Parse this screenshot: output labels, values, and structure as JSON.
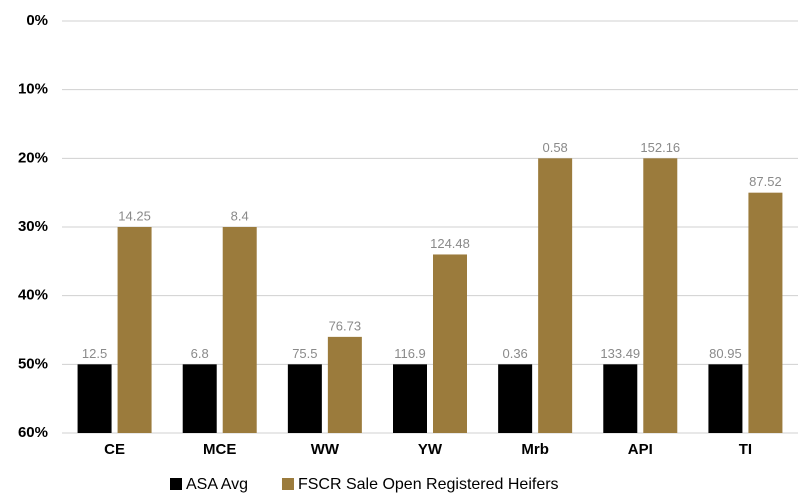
{
  "chart_data": {
    "type": "bar",
    "categories": [
      "CE",
      "MCE",
      "WW",
      "YW",
      "Mrb",
      "API",
      "TI"
    ],
    "series": [
      {
        "name": "ASA Avg",
        "color": "#000000",
        "values": [
          50,
          50,
          50,
          50,
          50,
          50,
          50
        ],
        "point_labels": [
          "12.5",
          "6.8",
          "75.5",
          "116.9",
          "0.36",
          "133.49",
          "80.95"
        ]
      },
      {
        "name": "FSCR Sale Open Registered Heifers",
        "color": "#9b7b3c",
        "values": [
          30,
          30,
          46,
          34,
          20,
          20,
          25
        ],
        "point_labels": [
          "14.25",
          "8.4",
          "76.73",
          "124.48",
          "0.58",
          "152.16",
          "87.52"
        ]
      }
    ],
    "ylim": [
      0,
      60
    ],
    "y_inverted": true,
    "yticks": [
      {
        "value": 0,
        "label": "0%"
      },
      {
        "value": 10,
        "label": "10%"
      },
      {
        "value": 20,
        "label": "20%"
      },
      {
        "value": 30,
        "label": "30%"
      },
      {
        "value": 40,
        "label": "40%"
      },
      {
        "value": 50,
        "label": "50%"
      },
      {
        "value": 60,
        "label": "60%"
      }
    ],
    "grid": true,
    "legend": "bottom"
  }
}
